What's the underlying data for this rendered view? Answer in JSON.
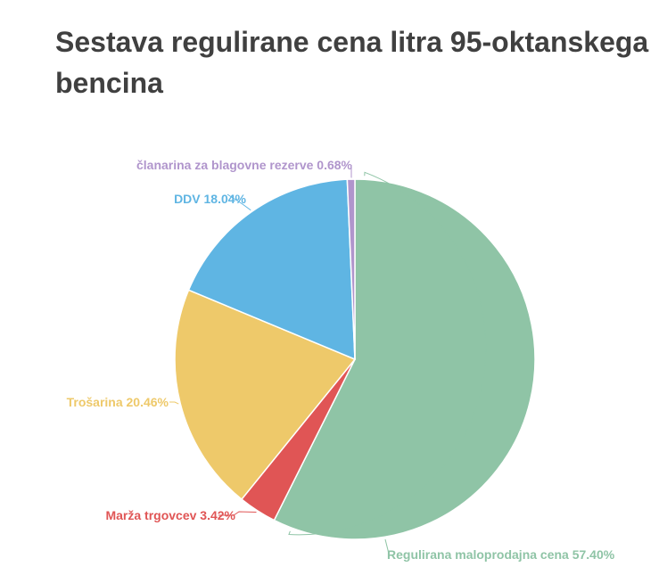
{
  "chart_data": {
    "type": "pie",
    "title": "Sestava regulirane cena litra 95-oktanskega bencina",
    "unit": "%",
    "slices": [
      {
        "label": "Regulirana maloprodajna cena",
        "value": 57.4,
        "display": "Regulirana maloprodajna cena 57.40%",
        "color": "#8fc4a6"
      },
      {
        "label": "Marža trgovcev",
        "value": 3.42,
        "display": "Marža trgovcev 3.42%",
        "color": "#e05555"
      },
      {
        "label": "Trošarina",
        "value": 20.46,
        "display": "Trošarina 20.46%",
        "color": "#eec96a"
      },
      {
        "label": "DDV",
        "value": 18.04,
        "display": "DDV 18.04%",
        "color": "#5fb5e3"
      },
      {
        "label": "članarina za blagovne rezerve",
        "value": 0.68,
        "display": "članarina za blagovne rezerve 0.68%",
        "color": "#b095cc"
      }
    ]
  }
}
